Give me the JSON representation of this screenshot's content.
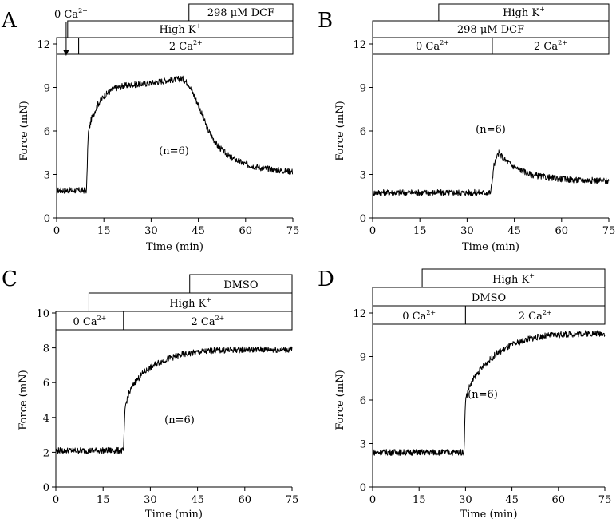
{
  "chart_data": [
    {
      "panel": "A",
      "type": "line",
      "xlabel": "Time (min)",
      "ylabel": "Force (mN)",
      "xlim": [
        0,
        75
      ],
      "ylim": [
        0,
        12
      ],
      "xticks": [
        "0",
        "15",
        "30",
        "45",
        "60",
        "75"
      ],
      "yticks": [
        "0",
        "3",
        "6",
        "9",
        "12"
      ],
      "annotation": "(n=6)",
      "arrow_label": {
        "text": "0 Ca",
        "sup": "2+",
        "x": 1.5
      },
      "bars": [
        {
          "text": "298 μM DCF",
          "sup": "",
          "start": 42,
          "end": 75,
          "row": 0
        },
        {
          "text": "High K",
          "sup": "+",
          "start": 3.5,
          "end": 75,
          "row": 1
        },
        {
          "text": "",
          "sup": "",
          "start": 0,
          "end": 7,
          "row": 2
        },
        {
          "text": "2 Ca",
          "sup": "2+",
          "start": 7,
          "end": 75,
          "row": 2
        }
      ],
      "series": [
        {
          "name": "Force",
          "x": [
            0,
            9.5,
            10,
            11,
            13,
            15,
            18,
            21,
            25,
            30,
            35,
            40,
            42,
            45,
            48,
            51,
            55,
            60,
            65,
            70,
            75
          ],
          "y": [
            1.9,
            1.9,
            5.8,
            6.8,
            7.8,
            8.4,
            8.9,
            9.1,
            9.2,
            9.3,
            9.5,
            9.6,
            9.2,
            7.8,
            6.1,
            5.0,
            4.2,
            3.7,
            3.45,
            3.3,
            3.2
          ]
        }
      ]
    },
    {
      "panel": "B",
      "type": "line",
      "xlabel": "Time (min)",
      "ylabel": "Force (mN)",
      "xlim": [
        0,
        75
      ],
      "ylim": [
        0,
        12
      ],
      "xticks": [
        "0",
        "15",
        "30",
        "45",
        "60",
        "75"
      ],
      "yticks": [
        "0",
        "3",
        "6",
        "9",
        "12"
      ],
      "annotation": "(n=6)",
      "bars": [
        {
          "text": "High K",
          "sup": "+",
          "start": 21,
          "end": 75,
          "row": 0
        },
        {
          "text": "298 μM DCF",
          "sup": "",
          "start": 0,
          "end": 75,
          "row": 1
        },
        {
          "text": "0 Ca",
          "sup": "2+",
          "start": 0,
          "end": 38,
          "row": 2
        },
        {
          "text": "2 Ca",
          "sup": "2+",
          "start": 38,
          "end": 75,
          "row": 2
        }
      ],
      "series": [
        {
          "name": "Force",
          "x": [
            0,
            37.5,
            38.5,
            40,
            42,
            45,
            50,
            55,
            60,
            65,
            70,
            75
          ],
          "y": [
            1.75,
            1.75,
            3.6,
            4.5,
            4.0,
            3.5,
            3.0,
            2.8,
            2.7,
            2.6,
            2.6,
            2.55
          ]
        }
      ]
    },
    {
      "panel": "C",
      "type": "line",
      "xlabel": "Time (min)",
      "ylabel": "Force (mN)",
      "xlim": [
        0,
        75
      ],
      "ylim": [
        0,
        10
      ],
      "xticks": [
        "0",
        "15",
        "30",
        "45",
        "60",
        "75"
      ],
      "yticks": [
        "0",
        "2",
        "4",
        "6",
        "8",
        "10"
      ],
      "annotation": "(n=6)",
      "bars": [
        {
          "text": "DMSO",
          "sup": "",
          "start": 42.5,
          "end": 75,
          "row": 0
        },
        {
          "text": "High K",
          "sup": "+",
          "start": 10.5,
          "end": 75,
          "row": 1
        },
        {
          "text": "0 Ca",
          "sup": "2+",
          "start": 0,
          "end": 21.5,
          "row": 2
        },
        {
          "text": "2 Ca",
          "sup": "2+",
          "start": 21.5,
          "end": 75,
          "row": 2
        }
      ],
      "series": [
        {
          "name": "Force",
          "x": [
            0,
            21.5,
            22,
            23,
            25,
            28,
            32,
            36,
            40,
            45,
            50,
            60,
            70,
            75
          ],
          "y": [
            2.1,
            2.1,
            4.6,
            5.3,
            6.0,
            6.6,
            7.1,
            7.4,
            7.6,
            7.75,
            7.85,
            7.9,
            7.9,
            7.9
          ]
        }
      ]
    },
    {
      "panel": "D",
      "type": "line",
      "xlabel": "Time (min)",
      "ylabel": "Force (mN)",
      "xlim": [
        0,
        75
      ],
      "ylim": [
        0,
        12
      ],
      "xticks": [
        "0",
        "15",
        "30",
        "45",
        "60",
        "75"
      ],
      "yticks": [
        "0",
        "3",
        "6",
        "9",
        "12"
      ],
      "annotation": "(n=6)",
      "bars": [
        {
          "text": "High K",
          "sup": "+",
          "start": 16,
          "end": 75,
          "row": 0
        },
        {
          "text": "DMSO",
          "sup": "",
          "start": 0,
          "end": 75,
          "row": 1
        },
        {
          "text": "0 Ca",
          "sup": "2+",
          "start": 0,
          "end": 30,
          "row": 2
        },
        {
          "text": "2 Ca",
          "sup": "2+",
          "start": 30,
          "end": 75,
          "row": 2
        }
      ],
      "series": [
        {
          "name": "Force",
          "x": [
            0,
            29.5,
            30,
            31,
            33,
            36,
            40,
            45,
            50,
            55,
            60,
            65,
            70,
            75
          ],
          "y": [
            2.4,
            2.4,
            6.0,
            6.8,
            7.6,
            8.4,
            9.2,
            9.8,
            10.2,
            10.4,
            10.5,
            10.55,
            10.6,
            10.6
          ]
        }
      ]
    }
  ]
}
